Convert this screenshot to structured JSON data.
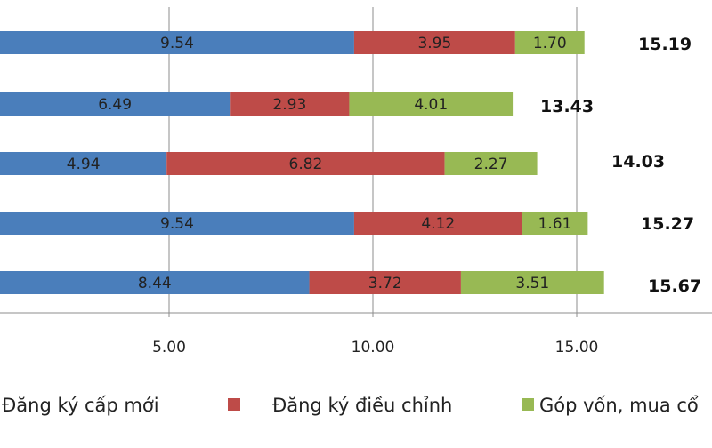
{
  "chart_data": {
    "type": "bar",
    "orientation": "horizontal",
    "stacked": true,
    "title": "",
    "xlabel": "",
    "ylabel": "",
    "categories": [
      "",
      "",
      "",
      "",
      ""
    ],
    "xlim": [
      0,
      15.75
    ],
    "xticks": [
      5,
      10,
      15
    ],
    "xtick_labels": [
      "5.00",
      "10.00",
      "15.00"
    ],
    "series": [
      {
        "name": "Đăng ký cấp mới",
        "color": "#4a7ebb",
        "values": [
          9.54,
          6.49,
          4.94,
          9.54,
          8.44
        ],
        "labels": [
          "9.54",
          "6.49",
          "4.94",
          "9.54",
          "8.44"
        ]
      },
      {
        "name": "Đăng ký điều chỉnh",
        "color": "#be4b48",
        "values": [
          3.95,
          2.93,
          6.82,
          4.12,
          3.72
        ],
        "labels": [
          "3.95",
          "2.93",
          "6.82",
          "4.12",
          "3.72"
        ]
      },
      {
        "name": "Góp vốn, mua cổ",
        "color": "#98b954",
        "values": [
          1.7,
          4.01,
          2.27,
          1.61,
          3.51
        ],
        "labels": [
          "1.70",
          "4.01",
          "2.27",
          "1.61",
          "3.51"
        ]
      }
    ],
    "totals": [
      "15.19",
      "13.43",
      "14.03",
      "15.27",
      "15.67"
    ],
    "gridlines": "vertical",
    "legend_position": "bottom"
  }
}
